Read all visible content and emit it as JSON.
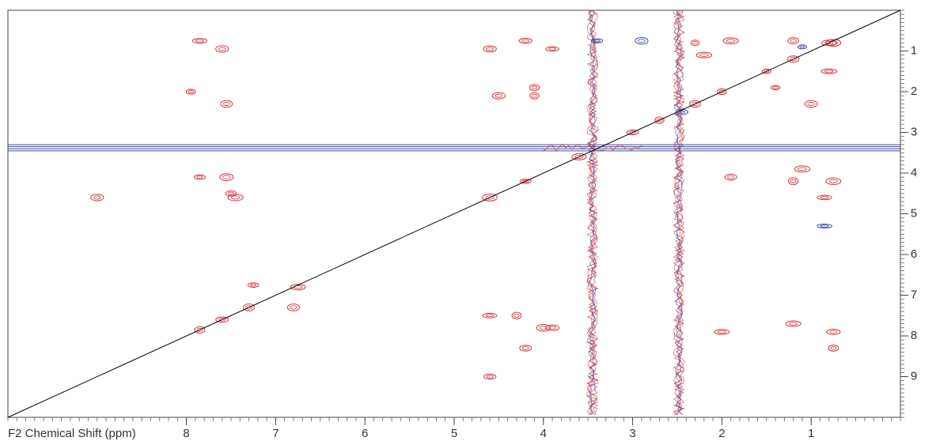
{
  "chart_data": {
    "type": "contour",
    "x_label": "F2 Chemical Shift (ppm)",
    "xlim": [
      10,
      0
    ],
    "ylim": [
      0,
      10
    ],
    "xticks": [
      8,
      7,
      6,
      5,
      4,
      3,
      2,
      1
    ],
    "yticks": [
      1,
      2,
      3,
      4,
      5,
      6,
      7,
      8,
      9
    ],
    "minor_tick_step": 0.1,
    "diagonal": true,
    "ridges": {
      "x": [
        3.45,
        2.48
      ],
      "y": [
        3.38
      ],
      "colors": [
        "#d8323c",
        "#3b4aa6"
      ]
    },
    "series": [
      {
        "color": "#d8323c",
        "x": [
          7.85,
          7.6,
          7.3,
          7.25,
          6.8,
          6.75,
          7.85,
          7.6,
          7.85,
          7.55,
          7.5,
          7.45,
          7.95,
          7.55,
          9.0,
          4.6,
          4.2,
          3.9,
          4.1,
          4.1,
          4.5,
          4.6,
          4.6,
          4.3,
          4.0,
          4.2,
          4.6,
          4.2,
          3.6,
          3.0,
          2.7,
          2.3,
          2.0,
          1.5,
          1.2,
          0.8,
          1.9,
          1.2,
          0.75,
          1.0,
          1.4,
          1.1,
          1.2,
          0.75,
          0.85,
          1.9,
          2.0,
          1.2,
          0.75,
          0.75,
          3.9,
          2.2,
          2.3,
          0.8
        ],
        "y": [
          7.85,
          7.6,
          7.3,
          6.75,
          7.3,
          6.8,
          0.75,
          0.95,
          4.1,
          4.1,
          4.5,
          4.6,
          2.0,
          2.3,
          4.6,
          0.95,
          0.75,
          0.95,
          1.9,
          2.1,
          2.1,
          7.5,
          9.0,
          7.5,
          7.8,
          8.3,
          4.6,
          4.2,
          3.6,
          3.0,
          2.7,
          2.3,
          2.0,
          1.5,
          1.2,
          0.8,
          0.75,
          0.75,
          0.8,
          2.3,
          1.9,
          3.9,
          4.2,
          4.2,
          4.6,
          4.1,
          7.9,
          7.7,
          7.9,
          8.3,
          7.8,
          1.1,
          0.8,
          1.5
        ]
      },
      {
        "color": "#3b4aa6",
        "x": [
          3.4,
          2.9,
          1.1,
          0.85,
          2.45
        ],
        "y": [
          0.75,
          0.75,
          0.9,
          5.3,
          2.5
        ]
      }
    ]
  }
}
